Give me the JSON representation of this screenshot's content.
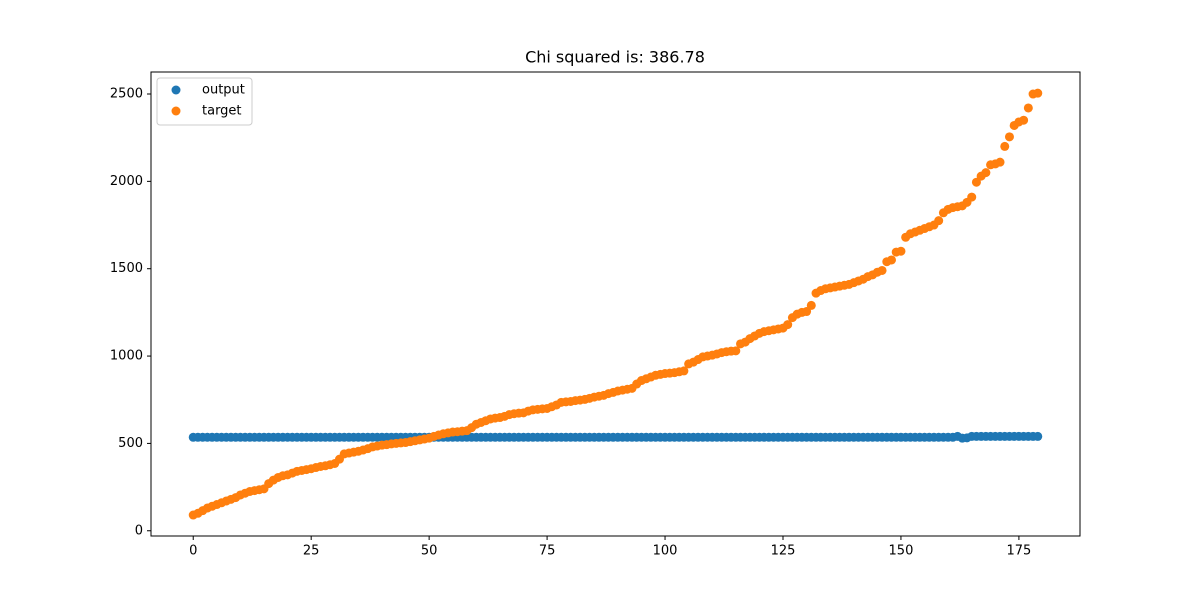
{
  "chart_data": {
    "type": "scatter",
    "title": "Chi squared is: 386.78",
    "xlim": [
      -8.95,
      187.95
    ],
    "xticks": [
      0,
      25,
      50,
      75,
      100,
      125,
      150,
      175
    ],
    "ylim": [
      -30,
      2626
    ],
    "yticks": [
      0,
      500,
      1000,
      1500,
      2000,
      2500
    ],
    "legend": "upper-left",
    "series": [
      {
        "name": "output",
        "color": "#1f77b4",
        "values": [
          535,
          535,
          535,
          535,
          535,
          535,
          535,
          535,
          535,
          535,
          535,
          535,
          535,
          535,
          535,
          535,
          535,
          535,
          535,
          535,
          535,
          535,
          535,
          535,
          535,
          535,
          535,
          535,
          535,
          535,
          535,
          535,
          535,
          535,
          535,
          535,
          535,
          535,
          535,
          535,
          535,
          535,
          535,
          535,
          535,
          535,
          535,
          535,
          535,
          535,
          535,
          535,
          535,
          535,
          535,
          535,
          535,
          535,
          535,
          535,
          535,
          535,
          535,
          535,
          535,
          535,
          535,
          535,
          535,
          535,
          535,
          535,
          535,
          535,
          535,
          535,
          535,
          535,
          535,
          535,
          535,
          535,
          535,
          535,
          535,
          535,
          535,
          535,
          535,
          535,
          535,
          535,
          535,
          535,
          535,
          535,
          535,
          535,
          535,
          535,
          535,
          535,
          535,
          535,
          535,
          535,
          535,
          535,
          535,
          535,
          535,
          535,
          535,
          535,
          535,
          535,
          535,
          535,
          535,
          535,
          535,
          535,
          535,
          535,
          535,
          535,
          535,
          535,
          535,
          535,
          535,
          535,
          535,
          535,
          535,
          535,
          535,
          535,
          535,
          535,
          535,
          535,
          535,
          535,
          535,
          535,
          535,
          535,
          535,
          535,
          535,
          535,
          535,
          535,
          535,
          535,
          535,
          535,
          535,
          535,
          535,
          535,
          540,
          530,
          532,
          540,
          540,
          540,
          540,
          540,
          540,
          540,
          540,
          540,
          540,
          540,
          540,
          540,
          540,
          540
        ]
      },
      {
        "name": "target",
        "color": "#ff7f0e",
        "values": [
          90,
          100,
          115,
          130,
          140,
          150,
          160,
          170,
          180,
          190,
          205,
          215,
          225,
          230,
          235,
          240,
          270,
          290,
          305,
          315,
          320,
          330,
          340,
          345,
          350,
          355,
          362,
          368,
          372,
          378,
          385,
          410,
          440,
          445,
          450,
          455,
          462,
          470,
          480,
          485,
          490,
          493,
          497,
          500,
          503,
          505,
          510,
          515,
          520,
          525,
          530,
          540,
          548,
          555,
          560,
          565,
          567,
          570,
          573,
          590,
          610,
          620,
          630,
          640,
          645,
          648,
          655,
          665,
          670,
          673,
          675,
          685,
          692,
          695,
          698,
          700,
          710,
          720,
          735,
          738,
          740,
          745,
          748,
          752,
          758,
          765,
          770,
          775,
          785,
          792,
          800,
          805,
          810,
          815,
          840,
          860,
          870,
          880,
          890,
          895,
          900,
          902,
          905,
          910,
          915,
          955,
          965,
          980,
          995,
          1000,
          1005,
          1012,
          1020,
          1025,
          1028,
          1030,
          1070,
          1080,
          1100,
          1115,
          1130,
          1140,
          1145,
          1150,
          1155,
          1160,
          1180,
          1220,
          1240,
          1250,
          1255,
          1290,
          1360,
          1375,
          1385,
          1390,
          1395,
          1400,
          1405,
          1410,
          1420,
          1430,
          1440,
          1455,
          1465,
          1480,
          1490,
          1540,
          1550,
          1595,
          1600,
          1680,
          1700,
          1710,
          1720,
          1730,
          1740,
          1750,
          1775,
          1820,
          1840,
          1850,
          1855,
          1860,
          1880,
          1910,
          1995,
          2030,
          2050,
          2095,
          2100,
          2110,
          2200,
          2255,
          2320,
          2340,
          2350,
          2420,
          2500,
          2505
        ]
      }
    ]
  }
}
